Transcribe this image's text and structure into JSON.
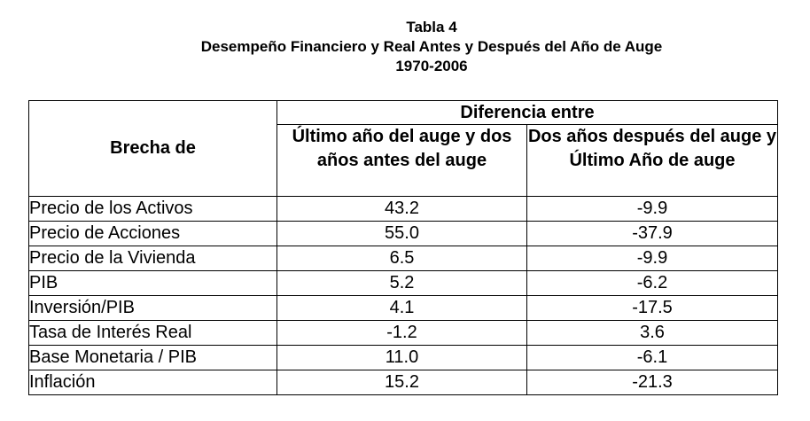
{
  "caption": {
    "line1": "Tabla 4",
    "line2": "Desempeño Financiero y Real Antes y Después del Año de Auge",
    "line3": "1970-2006"
  },
  "table": {
    "row_header": "Brecha de",
    "group_header": "Diferencia entre",
    "col1_header": "Último año del auge y dos años antes del auge",
    "col2_header": "Dos años después del auge y Último Año de auge",
    "rows": [
      {
        "label": "Precio de los Activos",
        "c1": "43.2",
        "c2": "-9.9"
      },
      {
        "label": "Precio de Acciones",
        "c1": "55.0",
        "c2": "-37.9"
      },
      {
        "label": "Precio de la Vivienda",
        "c1": "6.5",
        "c2": "-9.9"
      },
      {
        "label": "PIB",
        "c1": "5.2",
        "c2": "-6.2"
      },
      {
        "label": "Inversión/PIB",
        "c1": "4.1",
        "c2": "-17.5"
      },
      {
        "label": "Tasa de Interés Real",
        "c1": "-1.2",
        "c2": "3.6"
      },
      {
        "label": "Base Monetaria / PIB",
        "c1": "11.0",
        "c2": "-6.1"
      },
      {
        "label": "Inflación",
        "c1": "15.2",
        "c2": "-21.3"
      }
    ]
  }
}
